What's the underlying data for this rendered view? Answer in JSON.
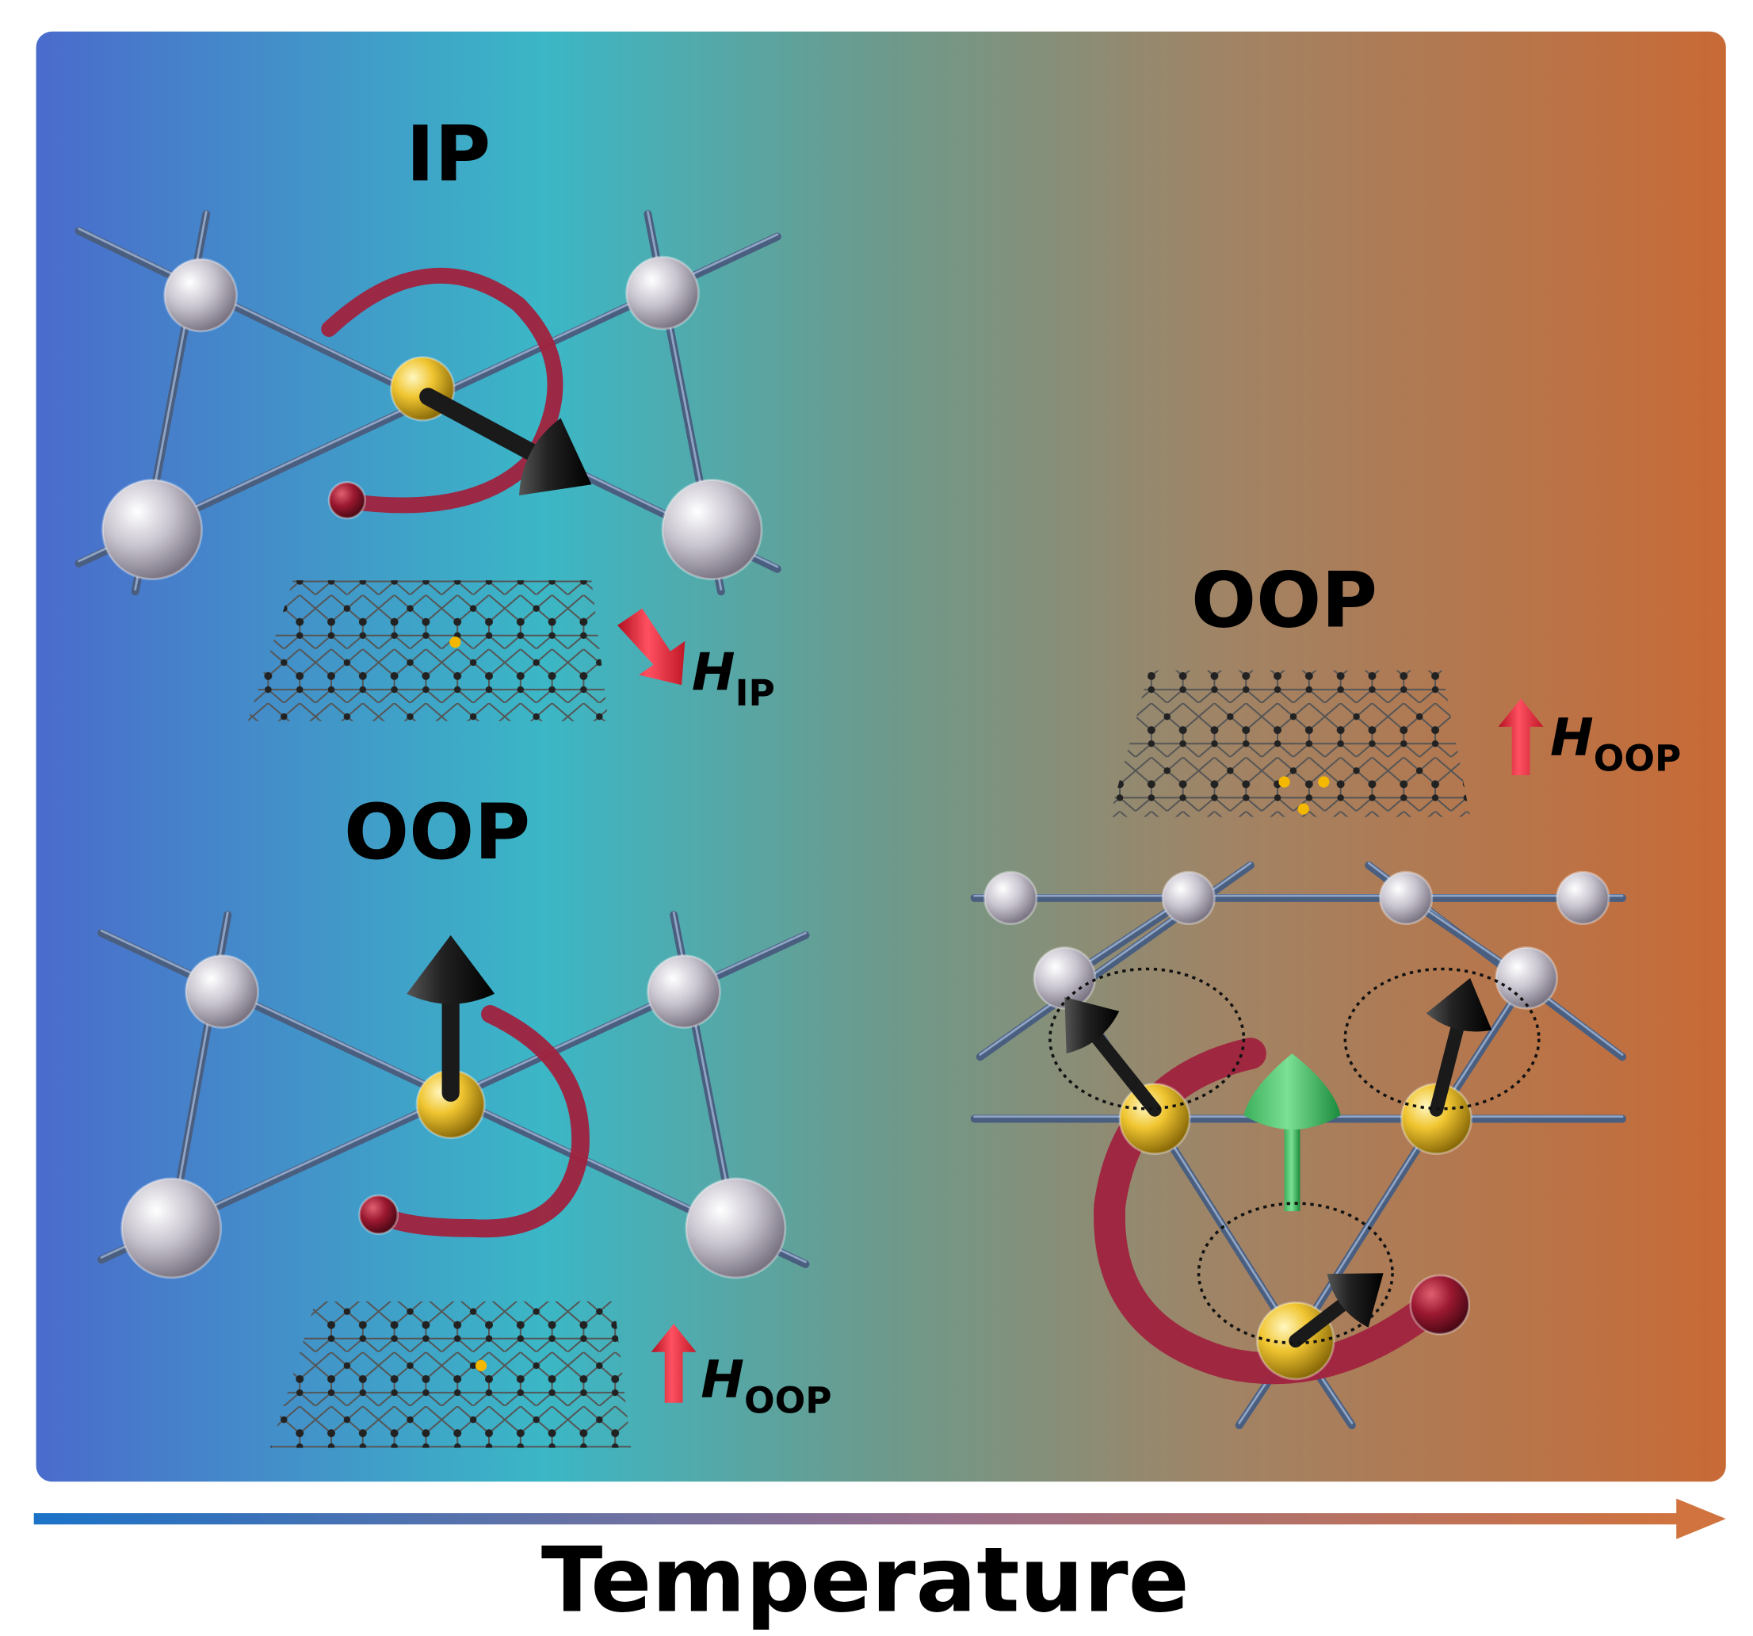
{
  "panels": [
    {
      "label": "IP",
      "field": {
        "symbol": "H",
        "subscript": "IP"
      }
    },
    {
      "label": "OOP",
      "field": {
        "symbol": "H",
        "subscript": "OOP"
      }
    },
    {
      "label": "OOP",
      "field": {
        "symbol": "H",
        "subscript": "OOP"
      }
    }
  ],
  "axis": {
    "label": "Temperature"
  }
}
